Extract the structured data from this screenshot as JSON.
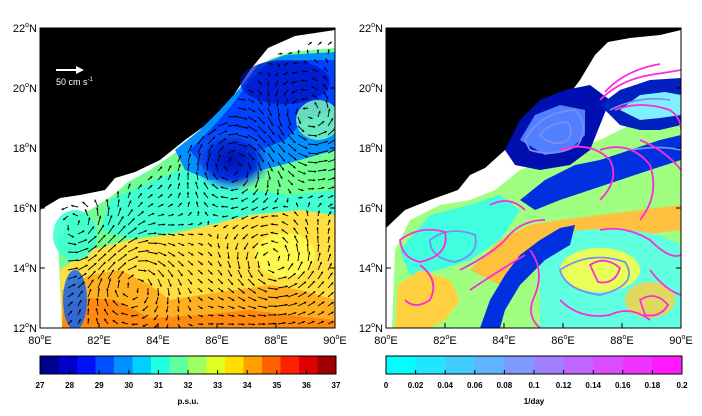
{
  "colors": {
    "land": "#000000",
    "nodata": "#ffffff",
    "frame": "#000000",
    "arrow": "#000000",
    "scale_arrow": "#ffffff",
    "contour_magenta": "#ff2bd9",
    "contour_blue": "#7a8ff0"
  },
  "panels": [
    {
      "id": "salinity",
      "lon_ticks": [
        "80",
        "82",
        "84",
        "86",
        "88",
        "90"
      ],
      "lat_ticks": [
        "12",
        "14",
        "16",
        "18",
        "20",
        "22"
      ],
      "lon_suffix": "E",
      "lat_suffix": "N",
      "degree": "o",
      "scale_arrow_label": "50 cm s",
      "scale_arrow_unit_sup": "-1",
      "colorbar": {
        "ticks": [
          "27",
          "28",
          "29",
          "30",
          "31",
          "32",
          "33",
          "34",
          "35",
          "36",
          "37"
        ],
        "label": "p.s.u.",
        "range": [
          27,
          37
        ],
        "colors": [
          "#00008f",
          "#0000c8",
          "#0010ff",
          "#0050ff",
          "#0090ff",
          "#00d0ff",
          "#20ffdf",
          "#60ffa0",
          "#a0ff60",
          "#e0ff20",
          "#ffdf00",
          "#ffa000",
          "#ff6000",
          "#ff2000",
          "#df0000",
          "#a00000"
        ]
      }
    },
    {
      "id": "rate",
      "lon_ticks": [
        "80",
        "82",
        "84",
        "86",
        "88",
        "90"
      ],
      "lat_ticks": [
        "12",
        "14",
        "16",
        "18",
        "20",
        "22"
      ],
      "lon_suffix": "E",
      "lat_suffix": "N",
      "degree": "o",
      "colorbar": {
        "ticks": [
          "0",
          "0.02",
          "0.04",
          "0.06",
          "0.08",
          "0.1",
          "0.12",
          "0.14",
          "0.16",
          "0.18",
          "0.2"
        ],
        "label": "1/day",
        "range": [
          0,
          0.2
        ],
        "colors": [
          "#00ffff",
          "#20e6ff",
          "#40ccff",
          "#60b3ff",
          "#8099ff",
          "#a080ff",
          "#c066ff",
          "#d94dff",
          "#f033ff",
          "#ff1aff"
        ]
      }
    }
  ]
}
